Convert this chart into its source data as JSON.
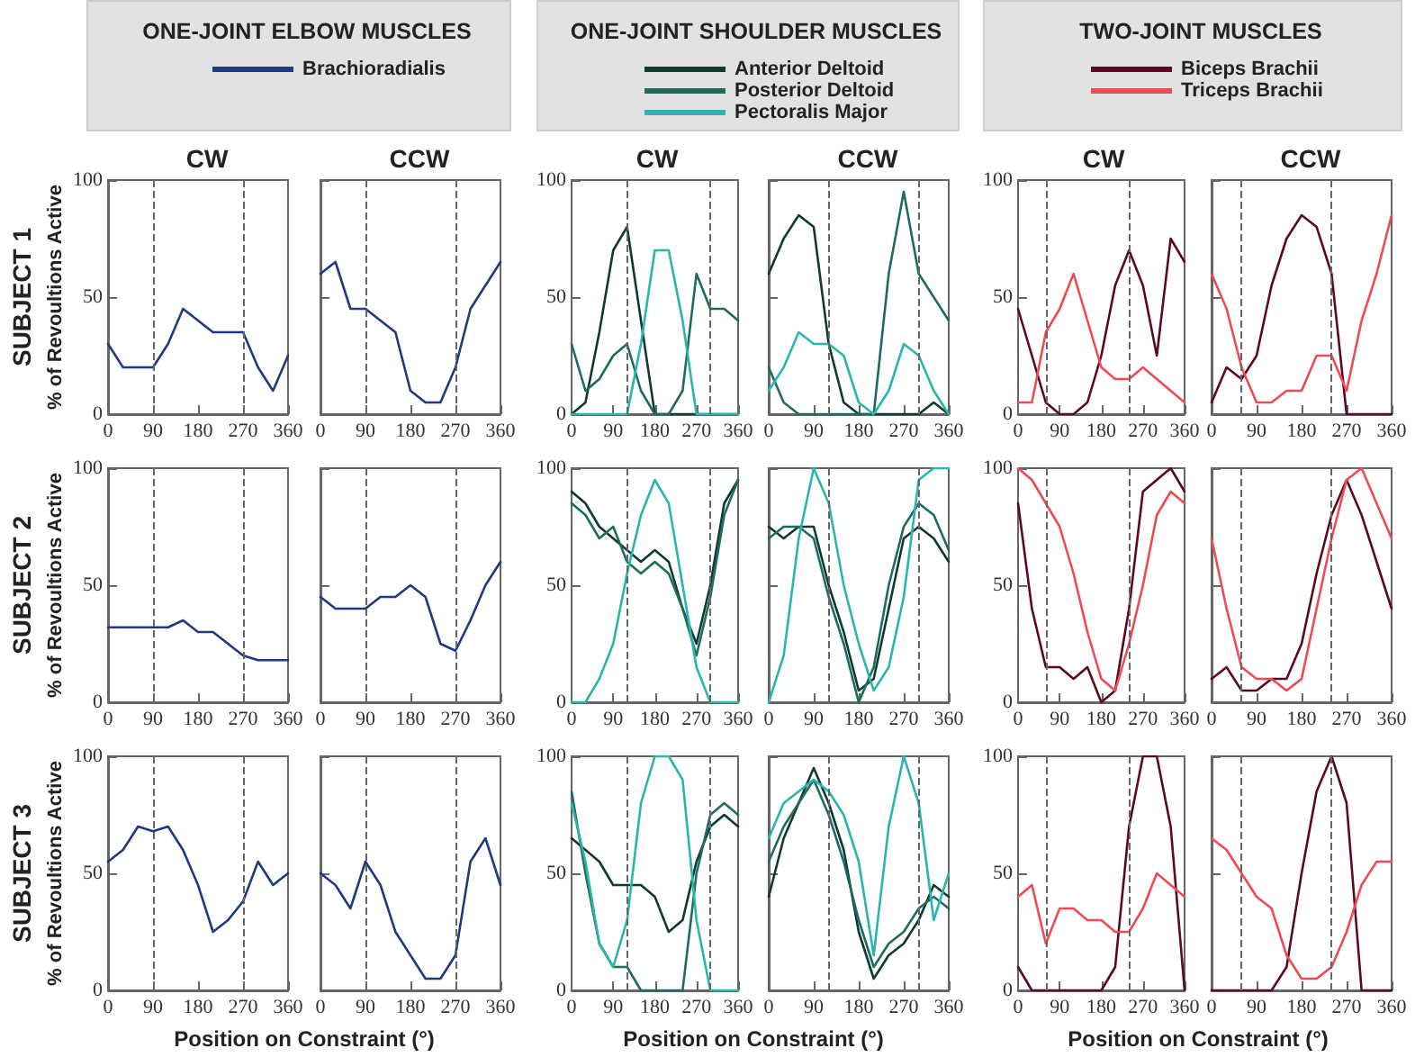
{
  "chart_data": [
    {
      "type": "line",
      "title": "CW",
      "legend_title": "ONE-JOINT ELBOW MUSCLES",
      "legend": "top",
      "ylabel": "% of Revoultions Active",
      "annotations": [
        "SUBJECT 1"
      ],
      "x": [
        0,
        30,
        60,
        90,
        120,
        150,
        180,
        210,
        240,
        270,
        300,
        330,
        360
      ],
      "xlim": [
        0,
        360
      ],
      "xticks": [
        0,
        90,
        180,
        270,
        360
      ],
      "ylim": [
        0,
        100
      ],
      "yticks": [
        0,
        50,
        100
      ],
      "ref_lines": [
        {
          "axis": "x",
          "value": 90
        },
        {
          "axis": "x",
          "value": 270
        }
      ],
      "series": [
        {
          "name": "Brachioradialis",
          "color": "#1f3a80",
          "values": [
            30,
            20,
            20,
            20,
            30,
            45,
            40,
            35,
            35,
            35,
            20,
            10,
            25
          ]
        }
      ]
    },
    {
      "type": "line",
      "title": "CCW",
      "tick_labels": "x",
      "x": [
        0,
        30,
        60,
        90,
        120,
        150,
        180,
        210,
        240,
        270,
        300,
        330,
        360
      ],
      "xlim": [
        0,
        360
      ],
      "xticks": [
        0,
        90,
        180,
        270,
        360
      ],
      "ylim": [
        0,
        100
      ],
      "yticks": [
        0,
        50,
        100
      ],
      "ref_lines": [
        {
          "axis": "x",
          "value": 90
        },
        {
          "axis": "x",
          "value": 270
        }
      ],
      "series": [
        {
          "color": "#1f3a80",
          "values": [
            60,
            65,
            45,
            45,
            40,
            35,
            10,
            5,
            5,
            20,
            45,
            55,
            65
          ]
        }
      ]
    },
    {
      "type": "line",
      "title": "CW",
      "legend_title": "ONE-JOINT SHOULDER MUSCLES",
      "legend": "top",
      "x": [
        0,
        30,
        60,
        90,
        120,
        150,
        180,
        210,
        240,
        270,
        300,
        330,
        360
      ],
      "xlim": [
        0,
        360
      ],
      "xticks": [
        0,
        90,
        180,
        270,
        360
      ],
      "ylim": [
        0,
        100
      ],
      "yticks": [
        0,
        50,
        100
      ],
      "ref_lines": [
        {
          "axis": "x",
          "value": 120
        },
        {
          "axis": "x",
          "value": 300
        }
      ],
      "series": [
        {
          "name": "Anterior Deltoid",
          "color": "#0f3a32",
          "values": [
            0,
            5,
            35,
            70,
            80,
            40,
            0,
            0,
            0,
            0,
            0,
            0,
            0
          ]
        },
        {
          "name": "Posterior Deltoid",
          "color": "#1e6b60",
          "values": [
            30,
            10,
            15,
            25,
            30,
            10,
            0,
            0,
            10,
            60,
            45,
            45,
            40
          ]
        },
        {
          "name": "Pectoralis Major",
          "color": "#2ab5b0",
          "values": [
            0,
            0,
            0,
            0,
            0,
            30,
            70,
            70,
            40,
            0,
            0,
            0,
            0
          ]
        }
      ]
    },
    {
      "type": "line",
      "title": "CCW",
      "tick_labels": "x",
      "x": [
        0,
        30,
        60,
        90,
        120,
        150,
        180,
        210,
        240,
        270,
        300,
        330,
        360
      ],
      "xlim": [
        0,
        360
      ],
      "xticks": [
        0,
        90,
        180,
        270,
        360
      ],
      "ylim": [
        0,
        100
      ],
      "yticks": [
        0,
        50,
        100
      ],
      "ref_lines": [
        {
          "axis": "x",
          "value": 120
        },
        {
          "axis": "x",
          "value": 300
        }
      ],
      "series": [
        {
          "color": "#0f3a32",
          "values": [
            60,
            75,
            85,
            80,
            30,
            5,
            0,
            0,
            0,
            0,
            0,
            5,
            0
          ]
        },
        {
          "color": "#1e6b60",
          "values": [
            20,
            5,
            0,
            0,
            0,
            0,
            0,
            0,
            60,
            95,
            60,
            50,
            40
          ]
        },
        {
          "color": "#2ab5b0",
          "values": [
            10,
            20,
            35,
            30,
            30,
            25,
            5,
            0,
            10,
            30,
            25,
            10,
            0
          ]
        }
      ]
    },
    {
      "type": "line",
      "title": "CW",
      "legend_title": "TWO-JOINT MUSCLES",
      "legend": "top",
      "x": [
        0,
        30,
        60,
        90,
        120,
        150,
        180,
        210,
        240,
        270,
        300,
        330,
        360
      ],
      "xlim": [
        0,
        360
      ],
      "xticks": [
        0,
        90,
        180,
        270,
        360
      ],
      "ylim": [
        0,
        100
      ],
      "yticks": [
        0,
        50,
        100
      ],
      "ref_lines": [
        {
          "axis": "x",
          "value": 60
        },
        {
          "axis": "x",
          "value": 240
        }
      ],
      "series": [
        {
          "name": "Biceps Brachii",
          "color": "#5c0a20",
          "values": [
            45,
            25,
            5,
            0,
            0,
            5,
            25,
            55,
            70,
            55,
            25,
            75,
            65
          ]
        },
        {
          "name": "Triceps Brachii",
          "color": "#f04a55",
          "values": [
            5,
            5,
            35,
            45,
            60,
            40,
            20,
            15,
            15,
            20,
            15,
            10,
            5
          ]
        }
      ]
    },
    {
      "type": "line",
      "title": "CCW",
      "tick_labels": "x",
      "x": [
        0,
        30,
        60,
        90,
        120,
        150,
        180,
        210,
        240,
        270,
        300,
        330,
        360
      ],
      "xlim": [
        0,
        360
      ],
      "xticks": [
        0,
        90,
        180,
        270,
        360
      ],
      "ylim": [
        0,
        100
      ],
      "yticks": [
        0,
        50,
        100
      ],
      "ref_lines": [
        {
          "axis": "x",
          "value": 60
        },
        {
          "axis": "x",
          "value": 240
        }
      ],
      "series": [
        {
          "color": "#5c0a20",
          "values": [
            5,
            20,
            15,
            25,
            55,
            75,
            85,
            80,
            60,
            0,
            0,
            0,
            0
          ]
        },
        {
          "color": "#f04a55",
          "values": [
            60,
            45,
            20,
            5,
            5,
            10,
            10,
            25,
            25,
            10,
            40,
            60,
            85
          ]
        }
      ]
    },
    {
      "type": "line",
      "ylabel": "% of Revoultions Active",
      "annotations": [
        "SUBJECT 2"
      ],
      "x": [
        0,
        30,
        60,
        90,
        120,
        150,
        180,
        210,
        240,
        270,
        300,
        330,
        360
      ],
      "xlim": [
        0,
        360
      ],
      "xticks": [
        0,
        90,
        180,
        270,
        360
      ],
      "ylim": [
        0,
        100
      ],
      "yticks": [
        0,
        50,
        100
      ],
      "ref_lines": [
        {
          "axis": "x",
          "value": 90
        },
        {
          "axis": "x",
          "value": 270
        }
      ],
      "series": [
        {
          "color": "#1f3a80",
          "values": [
            32,
            32,
            32,
            32,
            32,
            35,
            30,
            30,
            25,
            20,
            18,
            18,
            18
          ]
        }
      ]
    },
    {
      "type": "line",
      "tick_labels": "x",
      "x": [
        0,
        30,
        60,
        90,
        120,
        150,
        180,
        210,
        240,
        270,
        300,
        330,
        360
      ],
      "xlim": [
        0,
        360
      ],
      "xticks": [
        0,
        90,
        180,
        270,
        360
      ],
      "ylim": [
        0,
        100
      ],
      "yticks": [
        0,
        50,
        100
      ],
      "ref_lines": [
        {
          "axis": "x",
          "value": 90
        },
        {
          "axis": "x",
          "value": 270
        }
      ],
      "series": [
        {
          "color": "#1f3a80",
          "values": [
            45,
            40,
            40,
            40,
            45,
            45,
            50,
            45,
            25,
            22,
            35,
            50,
            60
          ]
        }
      ]
    },
    {
      "type": "line",
      "x": [
        0,
        30,
        60,
        90,
        120,
        150,
        180,
        210,
        240,
        270,
        300,
        330,
        360
      ],
      "xlim": [
        0,
        360
      ],
      "xticks": [
        0,
        90,
        180,
        270,
        360
      ],
      "ylim": [
        0,
        100
      ],
      "yticks": [
        0,
        50,
        100
      ],
      "ref_lines": [
        {
          "axis": "x",
          "value": 120
        },
        {
          "axis": "x",
          "value": 300
        }
      ],
      "series": [
        {
          "color": "#0f3a32",
          "values": [
            90,
            85,
            75,
            70,
            65,
            60,
            65,
            60,
            40,
            25,
            50,
            85,
            95
          ]
        },
        {
          "color": "#1e6b60",
          "values": [
            85,
            80,
            70,
            75,
            60,
            55,
            60,
            55,
            40,
            20,
            45,
            80,
            95
          ]
        },
        {
          "color": "#2ab5b0",
          "values": [
            0,
            0,
            10,
            25,
            55,
            80,
            95,
            85,
            50,
            15,
            0,
            0,
            0
          ]
        }
      ]
    },
    {
      "type": "line",
      "tick_labels": "x",
      "x": [
        0,
        30,
        60,
        90,
        120,
        150,
        180,
        210,
        240,
        270,
        300,
        330,
        360
      ],
      "xlim": [
        0,
        360
      ],
      "xticks": [
        0,
        90,
        180,
        270,
        360
      ],
      "ylim": [
        0,
        100
      ],
      "yticks": [
        0,
        50,
        100
      ],
      "ref_lines": [
        {
          "axis": "x",
          "value": 120
        },
        {
          "axis": "x",
          "value": 300
        }
      ],
      "series": [
        {
          "color": "#0f3a32",
          "values": [
            75,
            70,
            75,
            75,
            50,
            30,
            5,
            10,
            40,
            70,
            75,
            70,
            60
          ]
        },
        {
          "color": "#1e6b60",
          "values": [
            70,
            75,
            75,
            70,
            45,
            25,
            0,
            15,
            50,
            75,
            85,
            80,
            65
          ]
        },
        {
          "color": "#2ab5b0",
          "values": [
            0,
            20,
            70,
            100,
            85,
            50,
            25,
            5,
            15,
            45,
            95,
            100,
            100
          ]
        }
      ]
    },
    {
      "type": "line",
      "x": [
        0,
        30,
        60,
        90,
        120,
        150,
        180,
        210,
        240,
        270,
        300,
        330,
        360
      ],
      "xlim": [
        0,
        360
      ],
      "xticks": [
        0,
        90,
        180,
        270,
        360
      ],
      "ylim": [
        0,
        100
      ],
      "yticks": [
        0,
        50,
        100
      ],
      "ref_lines": [
        {
          "axis": "x",
          "value": 60
        },
        {
          "axis": "x",
          "value": 240
        }
      ],
      "series": [
        {
          "color": "#5c0a20",
          "values": [
            85,
            40,
            15,
            15,
            10,
            15,
            0,
            5,
            40,
            90,
            95,
            100,
            90
          ]
        },
        {
          "color": "#f04a55",
          "values": [
            100,
            95,
            85,
            75,
            55,
            30,
            10,
            5,
            25,
            50,
            80,
            90,
            85
          ]
        }
      ]
    },
    {
      "type": "line",
      "tick_labels": "x",
      "x": [
        0,
        30,
        60,
        90,
        120,
        150,
        180,
        210,
        240,
        270,
        300,
        330,
        360
      ],
      "xlim": [
        0,
        360
      ],
      "xticks": [
        0,
        90,
        180,
        270,
        360
      ],
      "ylim": [
        0,
        100
      ],
      "yticks": [
        0,
        50,
        100
      ],
      "ref_lines": [
        {
          "axis": "x",
          "value": 60
        },
        {
          "axis": "x",
          "value": 240
        }
      ],
      "series": [
        {
          "color": "#5c0a20",
          "values": [
            10,
            15,
            5,
            5,
            10,
            10,
            25,
            55,
            80,
            95,
            80,
            60,
            40
          ]
        },
        {
          "color": "#f04a55",
          "values": [
            70,
            40,
            15,
            10,
            10,
            5,
            10,
            40,
            70,
            95,
            100,
            85,
            70
          ]
        }
      ]
    },
    {
      "type": "line",
      "ylabel": "% of Revoultions Active",
      "xlabel": "Position on Constraint (°)",
      "annotations": [
        "SUBJECT 3"
      ],
      "x": [
        0,
        30,
        60,
        90,
        120,
        150,
        180,
        210,
        240,
        270,
        300,
        330,
        360
      ],
      "xlim": [
        0,
        360
      ],
      "xticks": [
        0,
        90,
        180,
        270,
        360
      ],
      "ylim": [
        0,
        100
      ],
      "yticks": [
        0,
        50,
        100
      ],
      "ref_lines": [
        {
          "axis": "x",
          "value": 90
        },
        {
          "axis": "x",
          "value": 270
        }
      ],
      "series": [
        {
          "color": "#1f3a80",
          "values": [
            55,
            60,
            70,
            68,
            70,
            60,
            45,
            25,
            30,
            38,
            55,
            45,
            50
          ]
        }
      ]
    },
    {
      "type": "line",
      "tick_labels": "x",
      "x": [
        0,
        30,
        60,
        90,
        120,
        150,
        180,
        210,
        240,
        270,
        300,
        330,
        360
      ],
      "xlim": [
        0,
        360
      ],
      "xticks": [
        0,
        90,
        180,
        270,
        360
      ],
      "ylim": [
        0,
        100
      ],
      "yticks": [
        0,
        50,
        100
      ],
      "ref_lines": [
        {
          "axis": "x",
          "value": 90
        },
        {
          "axis": "x",
          "value": 270
        }
      ],
      "series": [
        {
          "color": "#1f3a80",
          "values": [
            50,
            45,
            35,
            55,
            45,
            25,
            15,
            5,
            5,
            15,
            55,
            65,
            45
          ]
        }
      ]
    },
    {
      "type": "line",
      "xlabel": "Position on Constraint (°)",
      "x": [
        0,
        30,
        60,
        90,
        120,
        150,
        180,
        210,
        240,
        270,
        300,
        330,
        360
      ],
      "xlim": [
        0,
        360
      ],
      "xticks": [
        0,
        90,
        180,
        270,
        360
      ],
      "ylim": [
        0,
        100
      ],
      "yticks": [
        0,
        50,
        100
      ],
      "ref_lines": [
        {
          "axis": "x",
          "value": 120
        },
        {
          "axis": "x",
          "value": 300
        }
      ],
      "series": [
        {
          "color": "#0f3a32",
          "values": [
            65,
            60,
            55,
            45,
            45,
            45,
            40,
            25,
            30,
            55,
            70,
            75,
            70
          ]
        },
        {
          "color": "#1e6b60",
          "values": [
            85,
            50,
            20,
            10,
            10,
            0,
            0,
            0,
            0,
            50,
            75,
            80,
            75
          ]
        },
        {
          "color": "#2ab5b0",
          "values": [
            80,
            55,
            20,
            10,
            30,
            80,
            100,
            100,
            90,
            30,
            0,
            0,
            0
          ]
        }
      ]
    },
    {
      "type": "line",
      "tick_labels": "x",
      "x": [
        0,
        30,
        60,
        90,
        120,
        150,
        180,
        210,
        240,
        270,
        300,
        330,
        360
      ],
      "xlim": [
        0,
        360
      ],
      "xticks": [
        0,
        90,
        180,
        270,
        360
      ],
      "ylim": [
        0,
        100
      ],
      "yticks": [
        0,
        50,
        100
      ],
      "ref_lines": [
        {
          "axis": "x",
          "value": 120
        },
        {
          "axis": "x",
          "value": 300
        }
      ],
      "series": [
        {
          "color": "#0f3a32",
          "values": [
            40,
            65,
            80,
            95,
            80,
            60,
            25,
            5,
            15,
            20,
            30,
            45,
            40
          ]
        },
        {
          "color": "#1e6b60",
          "values": [
            55,
            70,
            80,
            90,
            75,
            55,
            30,
            10,
            20,
            25,
            35,
            40,
            35
          ]
        },
        {
          "color": "#2ab5b0",
          "values": [
            65,
            80,
            85,
            90,
            85,
            75,
            55,
            15,
            70,
            100,
            80,
            30,
            50
          ]
        }
      ]
    },
    {
      "type": "line",
      "xlabel": "Position on Constraint (°)",
      "x": [
        0,
        30,
        60,
        90,
        120,
        150,
        180,
        210,
        240,
        270,
        300,
        330,
        360
      ],
      "xlim": [
        0,
        360
      ],
      "xticks": [
        0,
        90,
        180,
        270,
        360
      ],
      "ylim": [
        0,
        100
      ],
      "yticks": [
        0,
        50,
        100
      ],
      "ref_lines": [
        {
          "axis": "x",
          "value": 60
        },
        {
          "axis": "x",
          "value": 240
        }
      ],
      "series": [
        {
          "color": "#5c0a20",
          "values": [
            10,
            0,
            0,
            0,
            0,
            0,
            0,
            10,
            70,
            100,
            100,
            70,
            0
          ]
        },
        {
          "color": "#f04a55",
          "values": [
            40,
            45,
            20,
            35,
            35,
            30,
            30,
            25,
            25,
            35,
            50,
            45,
            40
          ]
        }
      ]
    },
    {
      "type": "line",
      "tick_labels": "x",
      "x": [
        0,
        30,
        60,
        90,
        120,
        150,
        180,
        210,
        240,
        270,
        300,
        330,
        360
      ],
      "xlim": [
        0,
        360
      ],
      "xticks": [
        0,
        90,
        180,
        270,
        360
      ],
      "ylim": [
        0,
        100
      ],
      "yticks": [
        0,
        50,
        100
      ],
      "ref_lines": [
        {
          "axis": "x",
          "value": 60
        },
        {
          "axis": "x",
          "value": 240
        }
      ],
      "series": [
        {
          "color": "#5c0a20",
          "values": [
            0,
            0,
            0,
            0,
            0,
            10,
            50,
            85,
            100,
            80,
            0,
            0,
            0
          ]
        },
        {
          "color": "#f04a55",
          "values": [
            65,
            60,
            50,
            40,
            35,
            15,
            5,
            5,
            10,
            25,
            45,
            55,
            55
          ]
        }
      ]
    }
  ]
}
